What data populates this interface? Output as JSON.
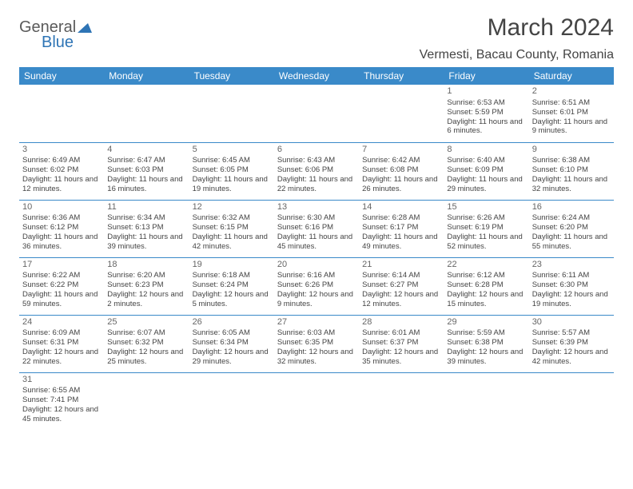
{
  "logo": {
    "line1": "General",
    "line2": "Blue"
  },
  "title": "March 2024",
  "location": "Vermesti, Bacau County, Romania",
  "colors": {
    "header_bg": "#3a8ac9",
    "header_text": "#ffffff",
    "border": "#3a8ac9",
    "logo_gray": "#5a5a5a",
    "logo_blue": "#2e74b5"
  },
  "weekdays": [
    "Sunday",
    "Monday",
    "Tuesday",
    "Wednesday",
    "Thursday",
    "Friday",
    "Saturday"
  ],
  "label_sunrise": "Sunrise: ",
  "label_sunset": "Sunset: ",
  "label_daylight": "Daylight: ",
  "weeks": [
    [
      null,
      null,
      null,
      null,
      null,
      {
        "d": "1",
        "sr": "6:53 AM",
        "ss": "5:59 PM",
        "dl": "11 hours and 6 minutes."
      },
      {
        "d": "2",
        "sr": "6:51 AM",
        "ss": "6:01 PM",
        "dl": "11 hours and 9 minutes."
      }
    ],
    [
      {
        "d": "3",
        "sr": "6:49 AM",
        "ss": "6:02 PM",
        "dl": "11 hours and 12 minutes."
      },
      {
        "d": "4",
        "sr": "6:47 AM",
        "ss": "6:03 PM",
        "dl": "11 hours and 16 minutes."
      },
      {
        "d": "5",
        "sr": "6:45 AM",
        "ss": "6:05 PM",
        "dl": "11 hours and 19 minutes."
      },
      {
        "d": "6",
        "sr": "6:43 AM",
        "ss": "6:06 PM",
        "dl": "11 hours and 22 minutes."
      },
      {
        "d": "7",
        "sr": "6:42 AM",
        "ss": "6:08 PM",
        "dl": "11 hours and 26 minutes."
      },
      {
        "d": "8",
        "sr": "6:40 AM",
        "ss": "6:09 PM",
        "dl": "11 hours and 29 minutes."
      },
      {
        "d": "9",
        "sr": "6:38 AM",
        "ss": "6:10 PM",
        "dl": "11 hours and 32 minutes."
      }
    ],
    [
      {
        "d": "10",
        "sr": "6:36 AM",
        "ss": "6:12 PM",
        "dl": "11 hours and 36 minutes."
      },
      {
        "d": "11",
        "sr": "6:34 AM",
        "ss": "6:13 PM",
        "dl": "11 hours and 39 minutes."
      },
      {
        "d": "12",
        "sr": "6:32 AM",
        "ss": "6:15 PM",
        "dl": "11 hours and 42 minutes."
      },
      {
        "d": "13",
        "sr": "6:30 AM",
        "ss": "6:16 PM",
        "dl": "11 hours and 45 minutes."
      },
      {
        "d": "14",
        "sr": "6:28 AM",
        "ss": "6:17 PM",
        "dl": "11 hours and 49 minutes."
      },
      {
        "d": "15",
        "sr": "6:26 AM",
        "ss": "6:19 PM",
        "dl": "11 hours and 52 minutes."
      },
      {
        "d": "16",
        "sr": "6:24 AM",
        "ss": "6:20 PM",
        "dl": "11 hours and 55 minutes."
      }
    ],
    [
      {
        "d": "17",
        "sr": "6:22 AM",
        "ss": "6:22 PM",
        "dl": "11 hours and 59 minutes."
      },
      {
        "d": "18",
        "sr": "6:20 AM",
        "ss": "6:23 PM",
        "dl": "12 hours and 2 minutes."
      },
      {
        "d": "19",
        "sr": "6:18 AM",
        "ss": "6:24 PM",
        "dl": "12 hours and 5 minutes."
      },
      {
        "d": "20",
        "sr": "6:16 AM",
        "ss": "6:26 PM",
        "dl": "12 hours and 9 minutes."
      },
      {
        "d": "21",
        "sr": "6:14 AM",
        "ss": "6:27 PM",
        "dl": "12 hours and 12 minutes."
      },
      {
        "d": "22",
        "sr": "6:12 AM",
        "ss": "6:28 PM",
        "dl": "12 hours and 15 minutes."
      },
      {
        "d": "23",
        "sr": "6:11 AM",
        "ss": "6:30 PM",
        "dl": "12 hours and 19 minutes."
      }
    ],
    [
      {
        "d": "24",
        "sr": "6:09 AM",
        "ss": "6:31 PM",
        "dl": "12 hours and 22 minutes."
      },
      {
        "d": "25",
        "sr": "6:07 AM",
        "ss": "6:32 PM",
        "dl": "12 hours and 25 minutes."
      },
      {
        "d": "26",
        "sr": "6:05 AM",
        "ss": "6:34 PM",
        "dl": "12 hours and 29 minutes."
      },
      {
        "d": "27",
        "sr": "6:03 AM",
        "ss": "6:35 PM",
        "dl": "12 hours and 32 minutes."
      },
      {
        "d": "28",
        "sr": "6:01 AM",
        "ss": "6:37 PM",
        "dl": "12 hours and 35 minutes."
      },
      {
        "d": "29",
        "sr": "5:59 AM",
        "ss": "6:38 PM",
        "dl": "12 hours and 39 minutes."
      },
      {
        "d": "30",
        "sr": "5:57 AM",
        "ss": "6:39 PM",
        "dl": "12 hours and 42 minutes."
      }
    ],
    [
      {
        "d": "31",
        "sr": "6:55 AM",
        "ss": "7:41 PM",
        "dl": "12 hours and 45 minutes."
      },
      null,
      null,
      null,
      null,
      null,
      null
    ]
  ]
}
